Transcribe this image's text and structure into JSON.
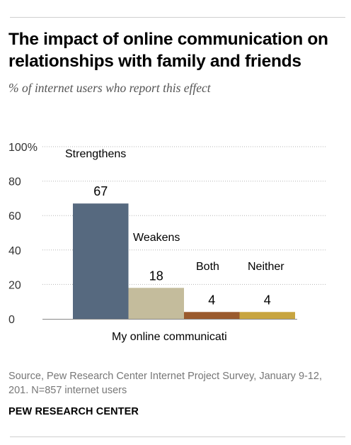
{
  "header": {
    "title": "The impact of online communication on relationships with family and friends",
    "subtitle": "% of internet users who report this effect"
  },
  "footer": {
    "source": "Source, Pew Research Center Internet Project Survey, January 9-12, 201. N=857 internet users",
    "brand": "PEW RESEARCH CENTER"
  },
  "chart_data": {
    "type": "bar",
    "xlabel": "My online communicati",
    "ylabel": "",
    "ylim": [
      0,
      100
    ],
    "yticks": [
      "0",
      "20",
      "40",
      "60",
      "80",
      "100%"
    ],
    "grid": true,
    "categories": [
      "Strengthens",
      "Weakens",
      "Both",
      "Neither"
    ],
    "values": [
      67,
      18,
      4,
      4
    ],
    "value_labels": [
      "67",
      "18",
      "4",
      "4"
    ],
    "colors": [
      "#56697f",
      "#c4bc9c",
      "#9a5a2d",
      "#c8a540"
    ]
  }
}
